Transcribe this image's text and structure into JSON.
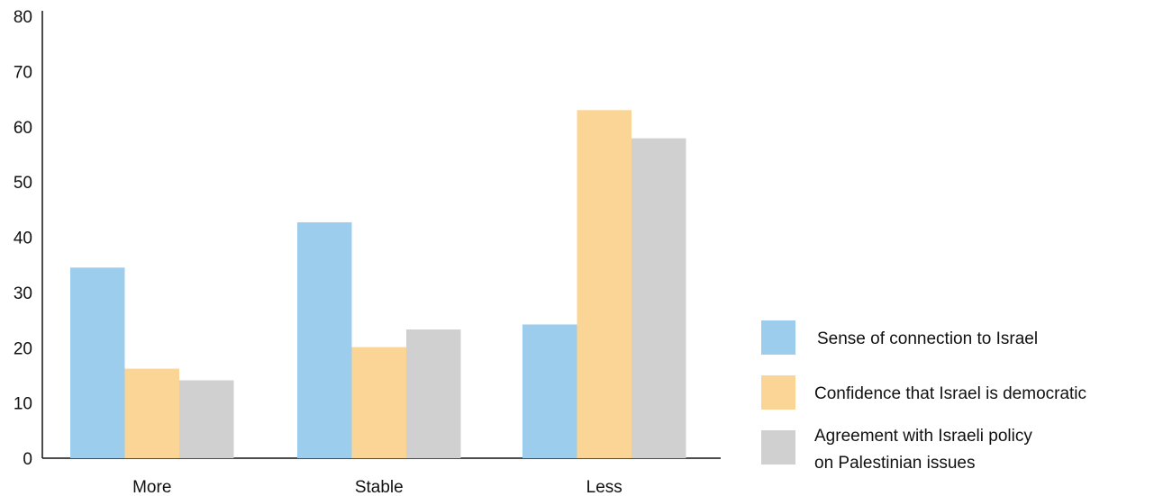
{
  "chart_data": {
    "type": "bar",
    "categories": [
      "More",
      "Stable",
      "Less"
    ],
    "series": [
      {
        "name": "Sense of connection to Israel",
        "values": [
          34.5,
          42.7,
          24.2
        ],
        "color": "#9ccdec"
      },
      {
        "name": "Confidence that Israel is democratic",
        "values": [
          16.2,
          20.1,
          63.0
        ],
        "color": "#fbd595"
      },
      {
        "name": "Agreement with Israeli policy on Palestinian issues",
        "values": [
          14.1,
          23.3,
          57.9
        ],
        "color": "#d0d0d0",
        "label_lines": [
          "Agreement with Israeli policy",
          "on Palestinian issues"
        ]
      }
    ],
    "yticks": [
      0,
      10,
      20,
      30,
      40,
      50,
      60,
      70,
      80
    ],
    "ylim": [
      0,
      80
    ],
    "title": "",
    "xlabel": "",
    "ylabel": "",
    "grid": false,
    "legend_position": "right"
  }
}
